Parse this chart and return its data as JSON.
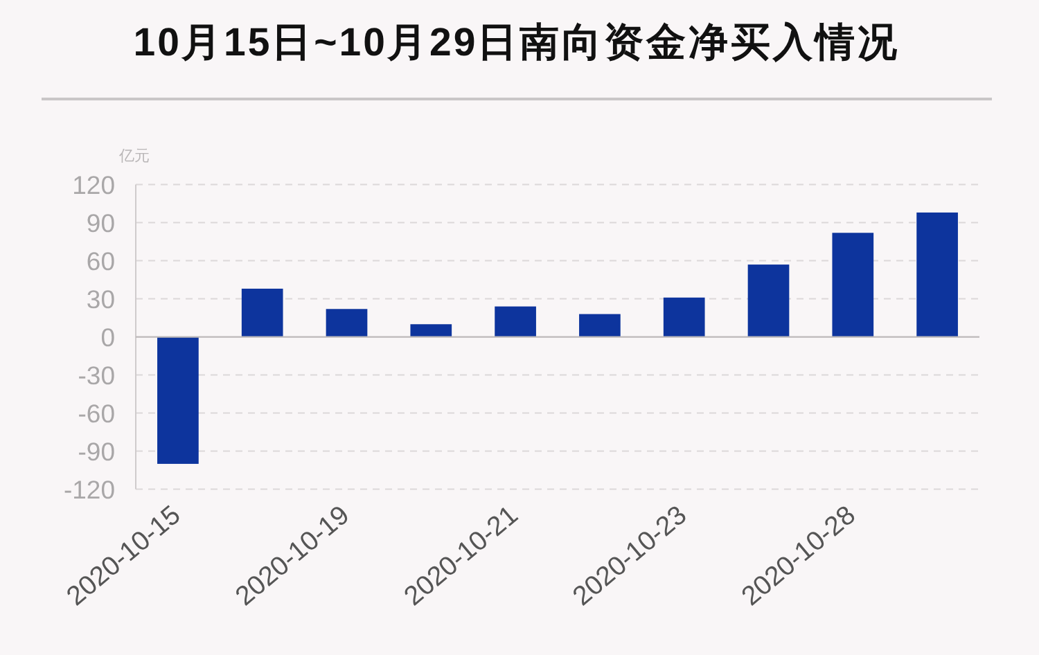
{
  "chart_data": {
    "type": "bar",
    "title": "10月15日~10月29日南向资金净买入情况",
    "ylabel": "亿元",
    "categories": [
      "2020-10-15",
      null,
      "2020-10-19",
      null,
      "2020-10-21",
      null,
      "2020-10-23",
      null,
      "2020-10-28",
      null
    ],
    "values": [
      -100,
      38,
      22,
      10,
      24,
      18,
      31,
      57,
      82,
      98
    ],
    "color": "#0d349d",
    "ylim": [
      -120,
      120
    ],
    "yticks": [
      -120,
      -90,
      -60,
      -30,
      0,
      30,
      60,
      90,
      120
    ],
    "grid": "y"
  }
}
